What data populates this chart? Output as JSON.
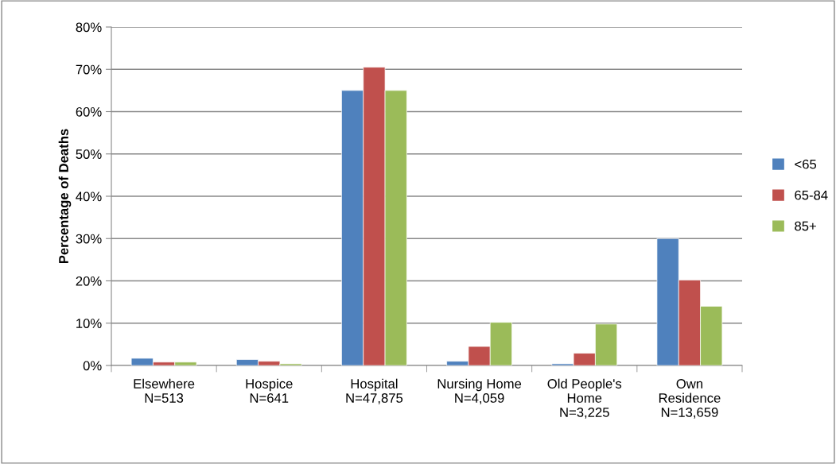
{
  "chart_data": {
    "type": "bar",
    "ylabel": "Percentage of Deaths",
    "categories": [
      "Elsewhere\nN=513",
      "Hospice\nN=641",
      "Hospital\nN=47,875",
      "Nursing Home\nN=4,059",
      "Old People's\nHome\nN=3,225",
      "Own\nResidence\nN=13,659"
    ],
    "series": [
      {
        "name": "<65",
        "color": "#4f81bd",
        "values": [
          1.7,
          1.4,
          65.0,
          1.0,
          0.4,
          30.0
        ]
      },
      {
        "name": "65-84",
        "color": "#c0504d",
        "values": [
          0.8,
          1.0,
          70.5,
          4.5,
          2.9,
          20.2
        ]
      },
      {
        "name": "85+",
        "color": "#9bbb59",
        "values": [
          0.8,
          0.4,
          65.0,
          10.2,
          9.8,
          14.0
        ]
      }
    ],
    "ylim": [
      0,
      80
    ],
    "yticks": [
      {
        "value": 0,
        "label": "0%"
      },
      {
        "value": 10,
        "label": "10%"
      },
      {
        "value": 20,
        "label": "20%"
      },
      {
        "value": 30,
        "label": "30%"
      },
      {
        "value": 40,
        "label": "40%"
      },
      {
        "value": 50,
        "label": "50%"
      },
      {
        "value": 60,
        "label": "60%"
      },
      {
        "value": 70,
        "label": "70%"
      },
      {
        "value": 80,
        "label": "80%"
      }
    ],
    "grid": "y",
    "legend": "right"
  }
}
